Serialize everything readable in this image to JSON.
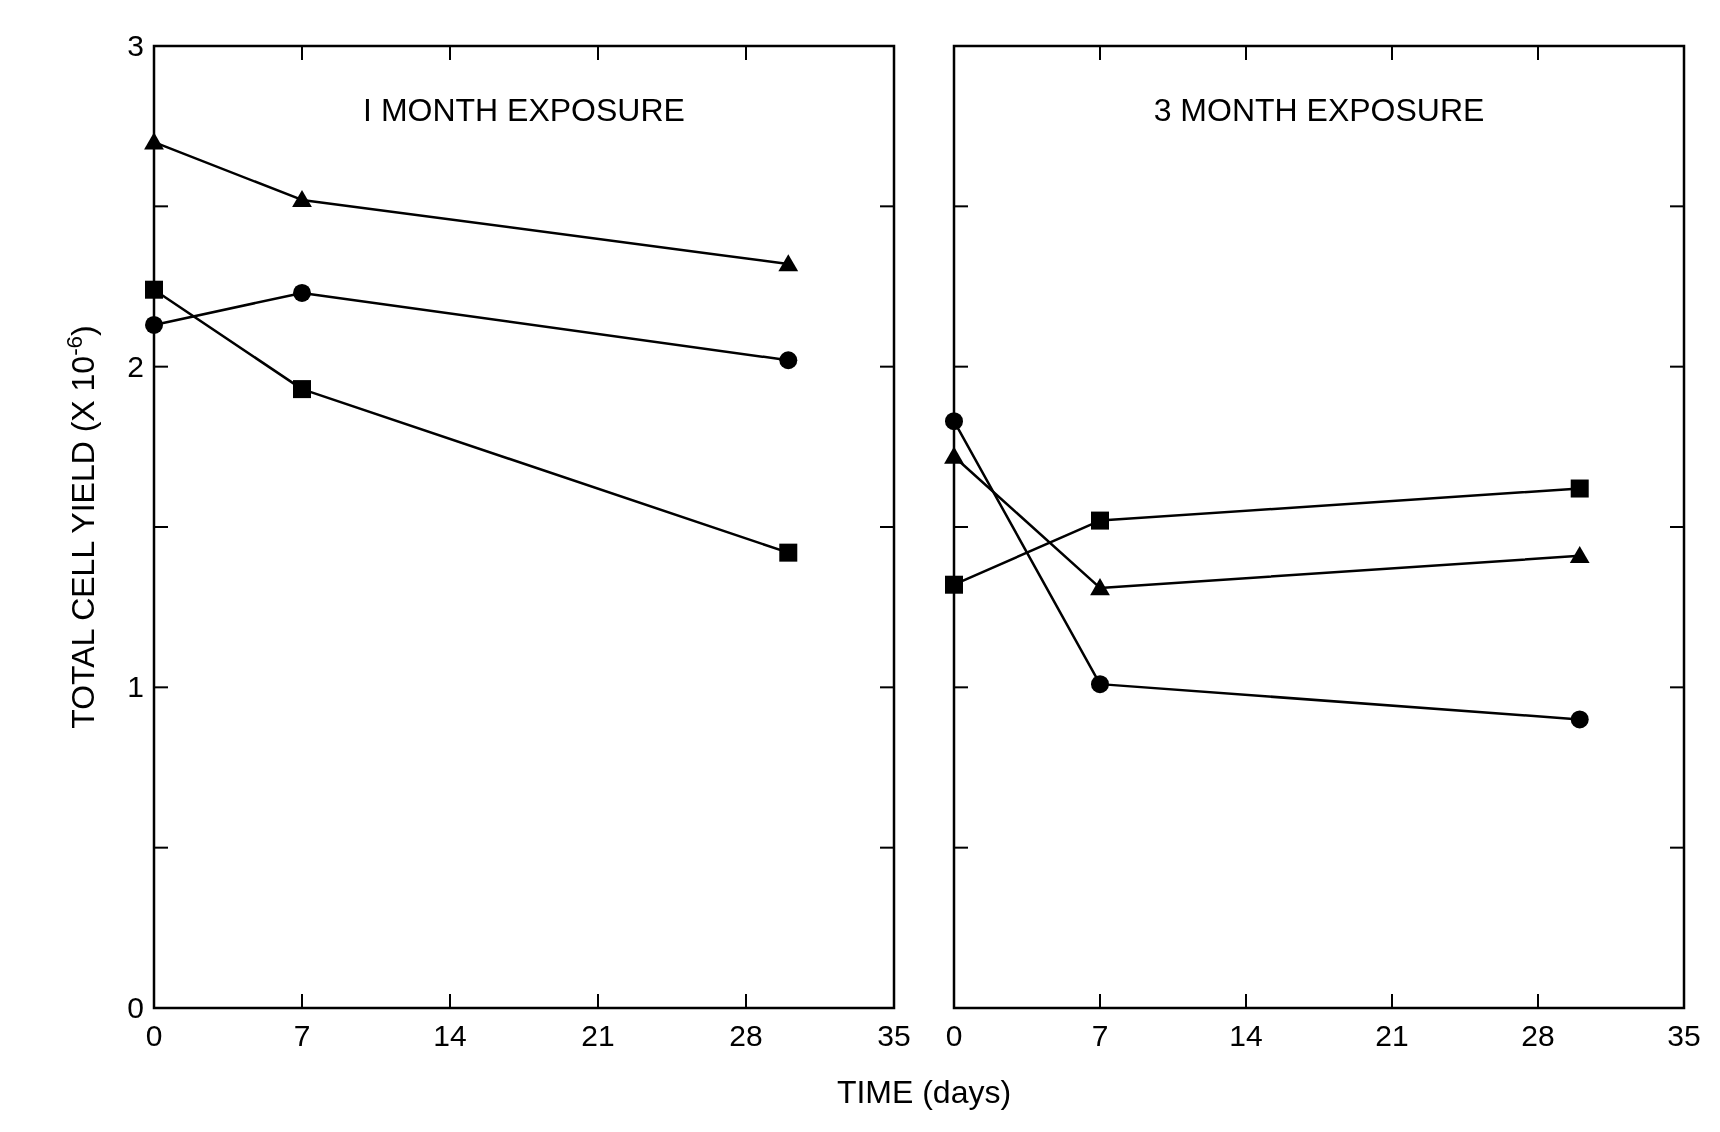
{
  "chart_data": [
    {
      "type": "line",
      "title": "I MONTH EXPOSURE",
      "xlabel": "TIME (days)",
      "ylabel": "TOTAL CELL YIELD (X 10$^{-6}$)",
      "xlim": [
        0,
        35
      ],
      "xticks": [
        0,
        7,
        14,
        21,
        28,
        35
      ],
      "ylim": [
        0,
        3
      ],
      "yticks": [
        0,
        {
          "value": 0.5,
          "label": null
        },
        1,
        {
          "value": 1.5,
          "label": null
        },
        2,
        {
          "value": 2.5,
          "label": null
        },
        3
      ],
      "grid": false,
      "line_style": "solid",
      "x": [
        0,
        7,
        30
      ],
      "series": [
        {
          "color": "#000000",
          "marker": "triangle",
          "values": [
            2.7,
            2.52,
            2.32
          ]
        },
        {
          "color": "#000000",
          "marker": "circle",
          "values": [
            2.13,
            2.23,
            2.02
          ]
        },
        {
          "color": "#000000",
          "marker": "square",
          "values": [
            2.24,
            1.93,
            1.42
          ]
        }
      ]
    },
    {
      "type": "line",
      "title": "3 MONTH EXPOSURE",
      "xlim": [
        0,
        35
      ],
      "xticks": [
        0,
        7,
        14,
        21,
        28,
        35
      ],
      "ylim": [
        0,
        3
      ],
      "yticks": [
        0,
        {
          "value": 0.5,
          "label": null
        },
        1,
        {
          "value": 1.5,
          "label": null
        },
        2,
        {
          "value": 2.5,
          "label": null
        },
        3
      ],
      "tick_labels": "x",
      "grid": false,
      "line_style": "solid",
      "x": [
        0,
        7,
        30
      ],
      "series": [
        {
          "color": "#000000",
          "marker": "circle",
          "values": [
            1.83,
            1.01,
            0.9
          ]
        },
        {
          "color": "#000000",
          "marker": "triangle",
          "values": [
            1.72,
            1.31,
            1.41
          ]
        },
        {
          "color": "#000000",
          "marker": "square",
          "values": [
            1.32,
            1.52,
            1.62
          ]
        }
      ]
    }
  ]
}
